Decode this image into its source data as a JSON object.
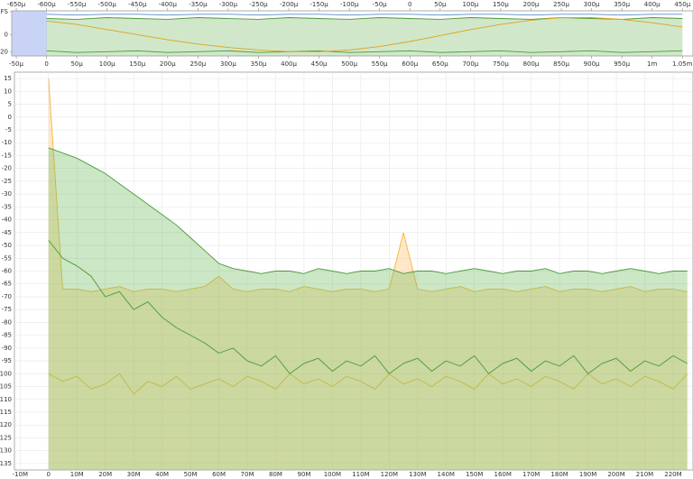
{
  "chart_data": [
    {
      "type": "line",
      "x": [
        0,
        5e-05,
        0.0001,
        0.00015,
        0.0002,
        0.00025,
        0.0003,
        0.00035,
        0.0004,
        0.00045,
        0.0005,
        0.00055,
        0.0006,
        0.00065,
        0.0007,
        0.00075,
        0.0008,
        0.00085,
        0.0009,
        0.00095,
        0.001,
        0.00105
      ],
      "series": [
        {
          "color": "#4a9a3a",
          "fill": "rgba(120,190,100,0.35)",
          "values": [
            19,
            18,
            20,
            19,
            18,
            20,
            19,
            18,
            20,
            19,
            18,
            20,
            19,
            18,
            20,
            19,
            18,
            20,
            19,
            18,
            20,
            19
          ]
        },
        {
          "color": "#4a9a3a",
          "values": [
            -19,
            -21,
            -20,
            -19,
            -21,
            -20,
            -19,
            -21,
            -20,
            -19,
            -21,
            -20,
            -19,
            -21,
            -20,
            -19,
            -21,
            -20,
            -19,
            -21,
            -20,
            -19
          ]
        },
        {
          "color": "#5a8ac8",
          "values": [
            24,
            23,
            24,
            24,
            23,
            24,
            24,
            23,
            24,
            24,
            23,
            24,
            24,
            23,
            24,
            24,
            23,
            24,
            24,
            23,
            24,
            24
          ]
        },
        {
          "color": "#e0a020",
          "values": [
            16,
            12,
            6,
            0,
            -6,
            -11,
            -15,
            -18,
            -20,
            -20,
            -18,
            -14,
            -8,
            -1,
            6,
            12,
            17,
            20,
            20,
            18,
            14,
            9
          ]
        }
      ],
      "xlim": [
        -5.75e-05,
        0.0010675
      ],
      "x2lim": [
        -0.0006575,
        0.0004675
      ],
      "ylim": [
        -25,
        28
      ],
      "yticks": [
        {
          "value": 27,
          "label": "FS"
        },
        0,
        -20
      ],
      "xticks": [
        {
          "value": -5e-05,
          "label": "-50µ"
        },
        0,
        {
          "value": 5e-05,
          "label": "50µ"
        },
        {
          "value": 0.0001,
          "label": "100µ"
        },
        {
          "value": 0.00015,
          "label": "150µ"
        },
        {
          "value": 0.0002,
          "label": "200µ"
        },
        {
          "value": 0.00025,
          "label": "250µ"
        },
        {
          "value": 0.0003,
          "label": "300µ"
        },
        {
          "value": 0.00035,
          "label": "350µ"
        },
        {
          "value": 0.0004,
          "label": "400µ"
        },
        {
          "value": 0.00045,
          "label": "450µ"
        },
        {
          "value": 0.0005,
          "label": "500µ"
        },
        {
          "value": 0.00055,
          "label": "550µ"
        },
        {
          "value": 0.0006,
          "label": "600µ"
        },
        {
          "value": 0.00065,
          "label": "650µ"
        },
        {
          "value": 0.0007,
          "label": "700µ"
        },
        {
          "value": 0.00075,
          "label": "750µ"
        },
        {
          "value": 0.0008,
          "label": "800µ"
        },
        {
          "value": 0.00085,
          "label": "850µ"
        },
        {
          "value": 0.0009,
          "label": "900µ"
        },
        {
          "value": 0.00095,
          "label": "950µ"
        },
        {
          "value": 0.001,
          "label": "1m"
        },
        {
          "value": 0.00105,
          "label": "1.05m"
        }
      ],
      "x2ticks": [
        {
          "value": -0.00065,
          "label": "-650µ"
        },
        {
          "value": -0.0006,
          "label": "-600µ"
        },
        {
          "value": -0.00055,
          "label": "-550µ"
        },
        {
          "value": -0.0005,
          "label": "-500µ"
        },
        {
          "value": -0.00045,
          "label": "-450µ"
        },
        {
          "value": -0.0004,
          "label": "-400µ"
        },
        {
          "value": -0.00035,
          "label": "-350µ"
        },
        {
          "value": -0.0003,
          "label": "-300µ"
        },
        {
          "value": -0.00025,
          "label": "-250µ"
        },
        {
          "value": -0.0002,
          "label": "-200µ"
        },
        {
          "value": -0.00015,
          "label": "-150µ"
        },
        {
          "value": -0.0001,
          "label": "-100µ"
        },
        {
          "value": -5e-05,
          "label": "-50µ"
        },
        0,
        {
          "value": 5e-05,
          "label": "50µ"
        },
        {
          "value": 0.0001,
          "label": "100µ"
        },
        {
          "value": 0.00015,
          "label": "150µ"
        },
        {
          "value": 0.0002,
          "label": "200µ"
        },
        {
          "value": 0.00025,
          "label": "250µ"
        },
        {
          "value": 0.0003,
          "label": "300µ"
        },
        {
          "value": 0.00035,
          "label": "350µ"
        },
        {
          "value": 0.0004,
          "label": "400µ"
        },
        {
          "value": 0.00045,
          "label": "450µ"
        }
      ],
      "grid": false
    },
    {
      "type": "line",
      "x": [
        0,
        5000000.0,
        10000000.0,
        15000000.0,
        20000000.0,
        25000000.0,
        30000000.0,
        35000000.0,
        40000000.0,
        45000000.0,
        50000000.0,
        55000000.0,
        60000000.0,
        65000000.0,
        70000000.0,
        75000000.0,
        80000000.0,
        85000000.0,
        90000000.0,
        95000000.0,
        100000000.0,
        105000000.0,
        110000000.0,
        115000000.0,
        120000000.0,
        125000000.0,
        130000000.0,
        135000000.0,
        140000000.0,
        145000000.0,
        150000000.0,
        155000000.0,
        160000000.0,
        165000000.0,
        170000000.0,
        175000000.0,
        180000000.0,
        185000000.0,
        190000000.0,
        195000000.0,
        200000000.0,
        205000000.0,
        210000000.0,
        215000000.0,
        220000000.0,
        225000000.0
      ],
      "series": [
        {
          "color": "#f5b43c",
          "fill": "rgba(253,205,130,0.45)",
          "values": [
            15,
            -67,
            -67,
            -68,
            -67,
            -66,
            -68,
            -67,
            -67,
            -68,
            -67,
            -66,
            -62,
            -67,
            -68,
            -67,
            -67,
            -68,
            -66,
            -67,
            -68,
            -67,
            -67,
            -68,
            -67,
            -45,
            -67,
            -68,
            -67,
            -66,
            -68,
            -67,
            -67,
            -68,
            -67,
            -66,
            -68,
            -67,
            -67,
            -68,
            -67,
            -66,
            -68,
            -67,
            -67,
            -68
          ]
        },
        {
          "color": "#f5b43c",
          "values": [
            -100,
            -103,
            -101,
            -106,
            -104,
            -100,
            -108,
            -103,
            -105,
            -101,
            -106,
            -104,
            -102,
            -105,
            -101,
            -103,
            -106,
            -100,
            -104,
            -102,
            -105,
            -101,
            -103,
            -106,
            -100,
            -104,
            -102,
            -105,
            -101,
            -103,
            -106,
            -100,
            -104,
            -102,
            -105,
            -101,
            -103,
            -106,
            -100,
            -104,
            -102,
            -105,
            -101,
            -103,
            -106,
            -100
          ]
        },
        {
          "color": "#4a9a3a",
          "fill": "rgba(110,185,90,0.35)",
          "values": [
            -12,
            -14,
            -16,
            -19,
            -22,
            -26,
            -30,
            -34,
            -38,
            -42,
            -47,
            -52,
            -57,
            -59,
            -60,
            -61,
            -60,
            -60,
            -61,
            -59,
            -60,
            -61,
            -60,
            -60,
            -59,
            -61,
            -60,
            -60,
            -61,
            -60,
            -59,
            -60,
            -61,
            -60,
            -60,
            -59,
            -61,
            -60,
            -60,
            -61,
            -60,
            -59,
            -60,
            -61,
            -60,
            -60
          ]
        },
        {
          "color": "#4a9a3a",
          "values": [
            -48,
            -55,
            -58,
            -62,
            -70,
            -68,
            -75,
            -72,
            -78,
            -82,
            -85,
            -88,
            -92,
            -90,
            -95,
            -97,
            -93,
            -100,
            -96,
            -94,
            -99,
            -95,
            -97,
            -93,
            -100,
            -96,
            -94,
            -99,
            -95,
            -97,
            -93,
            -100,
            -96,
            -94,
            -99,
            -95,
            -97,
            -93,
            -100,
            -96,
            -94,
            -99,
            -95,
            -97,
            -93,
            -96
          ]
        }
      ],
      "xlim": [
        -12000000.0,
        227000000.0
      ],
      "ylim": [
        -137.5,
        17.5
      ],
      "yticks": [
        15,
        10,
        5,
        0,
        -5,
        -10,
        -15,
        -20,
        -25,
        -30,
        -35,
        -40,
        -45,
        -50,
        -55,
        -60,
        -65,
        -70,
        -75,
        -80,
        -85,
        -90,
        -95,
        -100,
        -105,
        -110,
        -115,
        -120,
        -125,
        -130,
        -135
      ],
      "xticks": [
        {
          "value": -10000000.0,
          "label": "-10M"
        },
        0,
        {
          "value": 10000000.0,
          "label": "10M"
        },
        {
          "value": 20000000.0,
          "label": "20M"
        },
        {
          "value": 30000000.0,
          "label": "30M"
        },
        {
          "value": 40000000.0,
          "label": "40M"
        },
        {
          "value": 50000000.0,
          "label": "50M"
        },
        {
          "value": 60000000.0,
          "label": "60M"
        },
        {
          "value": 70000000.0,
          "label": "70M"
        },
        {
          "value": 80000000.0,
          "label": "80M"
        },
        {
          "value": 90000000.0,
          "label": "90M"
        },
        {
          "value": 100000000.0,
          "label": "100M"
        },
        {
          "value": 110000000.0,
          "label": "110M"
        },
        {
          "value": 120000000.0,
          "label": "120M"
        },
        {
          "value": 130000000.0,
          "label": "130M"
        },
        {
          "value": 140000000.0,
          "label": "140M"
        },
        {
          "value": 150000000.0,
          "label": "150M"
        },
        {
          "value": 160000000.0,
          "label": "160M"
        },
        {
          "value": 170000000.0,
          "label": "170M"
        },
        {
          "value": 180000000.0,
          "label": "180M"
        },
        {
          "value": 190000000.0,
          "label": "190M"
        },
        {
          "value": 200000000.0,
          "label": "200M"
        },
        {
          "value": 210000000.0,
          "label": "210M"
        },
        {
          "value": 220000000.0,
          "label": "220M"
        }
      ],
      "grid": true
    }
  ]
}
